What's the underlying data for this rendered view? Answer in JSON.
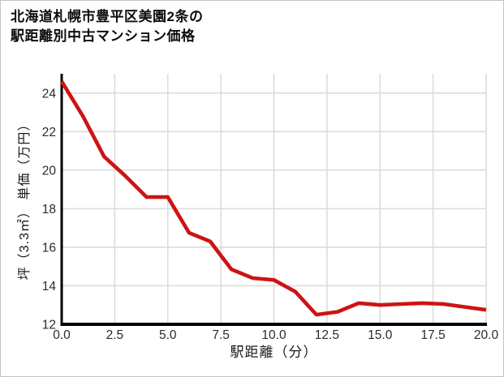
{
  "title": {
    "line1": "北海道札幌市豊平区美園2条の",
    "line2": "駅距離別中古マンション価格"
  },
  "chart_data": {
    "type": "line",
    "title": "北海道札幌市豊平区美園2条の駅距離別中古マンション価格",
    "xlabel": "駅距離（分）",
    "ylabel": "坪（3.3㎡） 単価（万円）",
    "x": [
      0,
      1,
      2,
      3,
      4,
      5,
      6,
      7,
      8,
      9,
      10,
      11,
      12,
      13,
      14,
      15,
      16,
      17,
      18,
      19,
      20
    ],
    "values": [
      24.6,
      22.8,
      20.7,
      19.7,
      18.6,
      18.6,
      16.75,
      16.3,
      14.85,
      14.4,
      14.3,
      13.7,
      12.5,
      12.65,
      13.1,
      13.0,
      13.05,
      13.1,
      13.05,
      12.9,
      12.75
    ],
    "xlim": [
      0,
      20
    ],
    "ylim": [
      12,
      25
    ],
    "x_tick_values": [
      0,
      2.5,
      5,
      7.5,
      10,
      12.5,
      15,
      17.5,
      20
    ],
    "x_tick_labels": [
      "0.0",
      "2.5",
      "5.0",
      "7.5",
      "10.0",
      "12.5",
      "15.0",
      "17.5",
      "20.0"
    ],
    "y_tick_values": [
      12,
      14,
      16,
      18,
      20,
      22,
      24
    ],
    "y_tick_labels": [
      "12",
      "14",
      "16",
      "18",
      "20",
      "22",
      "24"
    ],
    "grid": true,
    "legend": "none",
    "colors": {
      "line": "#cc1414",
      "grid": "#dcdcdc",
      "axis": "#000000",
      "tick_text": "#2b2b2b",
      "label_text": "#1a1a1a",
      "background": "#ffffff"
    }
  }
}
